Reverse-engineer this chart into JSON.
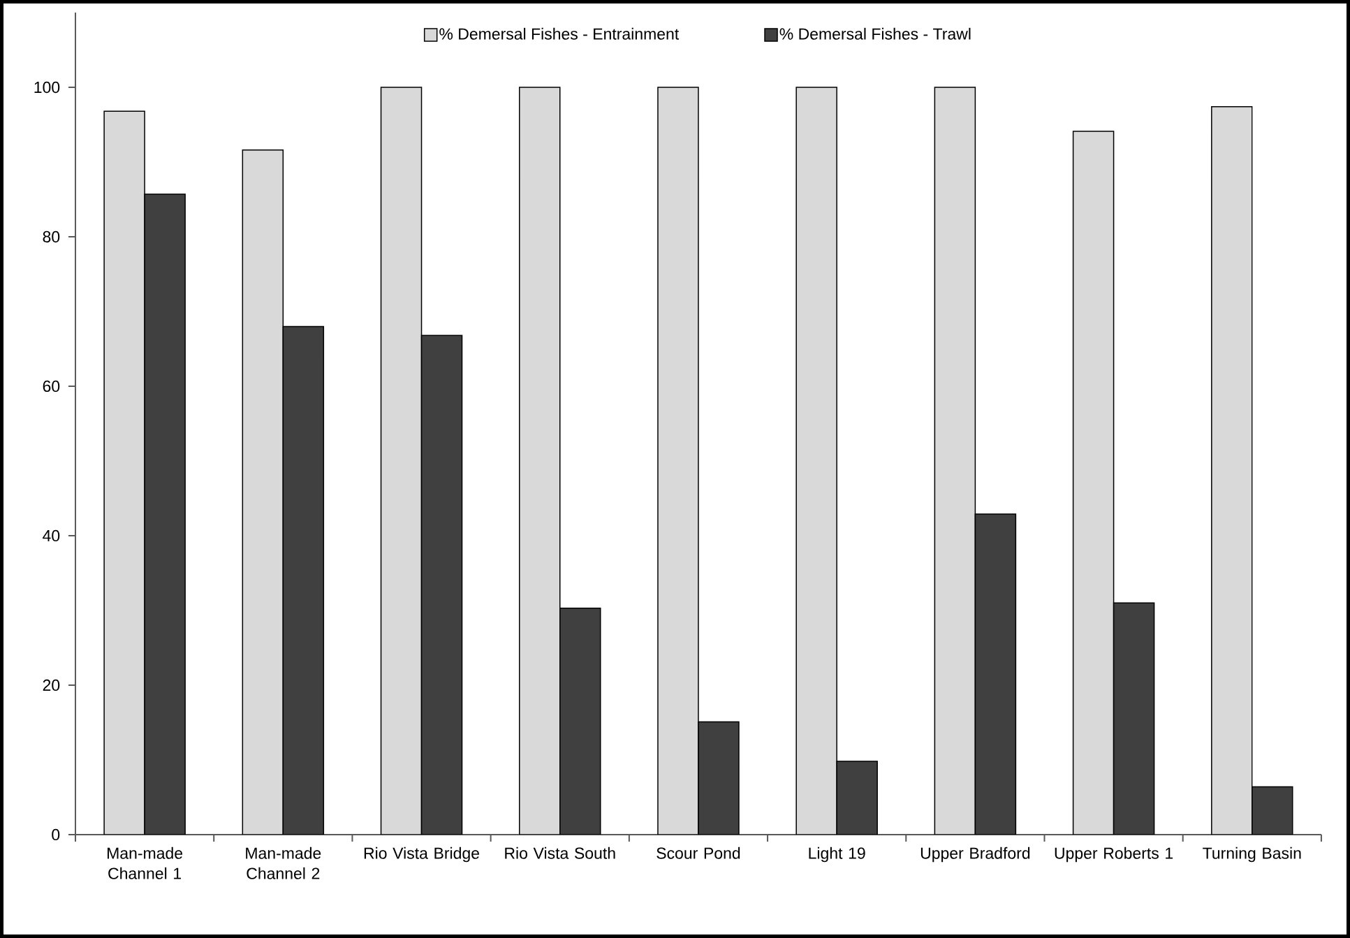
{
  "chart_data": {
    "type": "bar",
    "categories": [
      "Man-made Channel 1",
      "Man-made Channel 2",
      "Rio Vista Bridge",
      "Rio Vista South",
      "Scour Pond",
      "Light 19",
      "Upper Bradford",
      "Upper Roberts 1",
      "Turning Basin"
    ],
    "series": [
      {
        "name": "% Demersal Fishes - Entrainment",
        "color": "#d9d9d9",
        "values": [
          96.8,
          91.6,
          100,
          100,
          100,
          100,
          100,
          94.1,
          97.4
        ]
      },
      {
        "name": "% Demersal Fishes - Trawl",
        "color": "#404040",
        "values": [
          85.7,
          68.0,
          66.8,
          30.3,
          15.1,
          9.8,
          42.9,
          31.0,
          6.4
        ]
      }
    ],
    "ylim": [
      0,
      110
    ],
    "yticks": [
      0,
      20,
      40,
      60,
      80,
      100
    ],
    "grid": false,
    "legend": "top"
  }
}
